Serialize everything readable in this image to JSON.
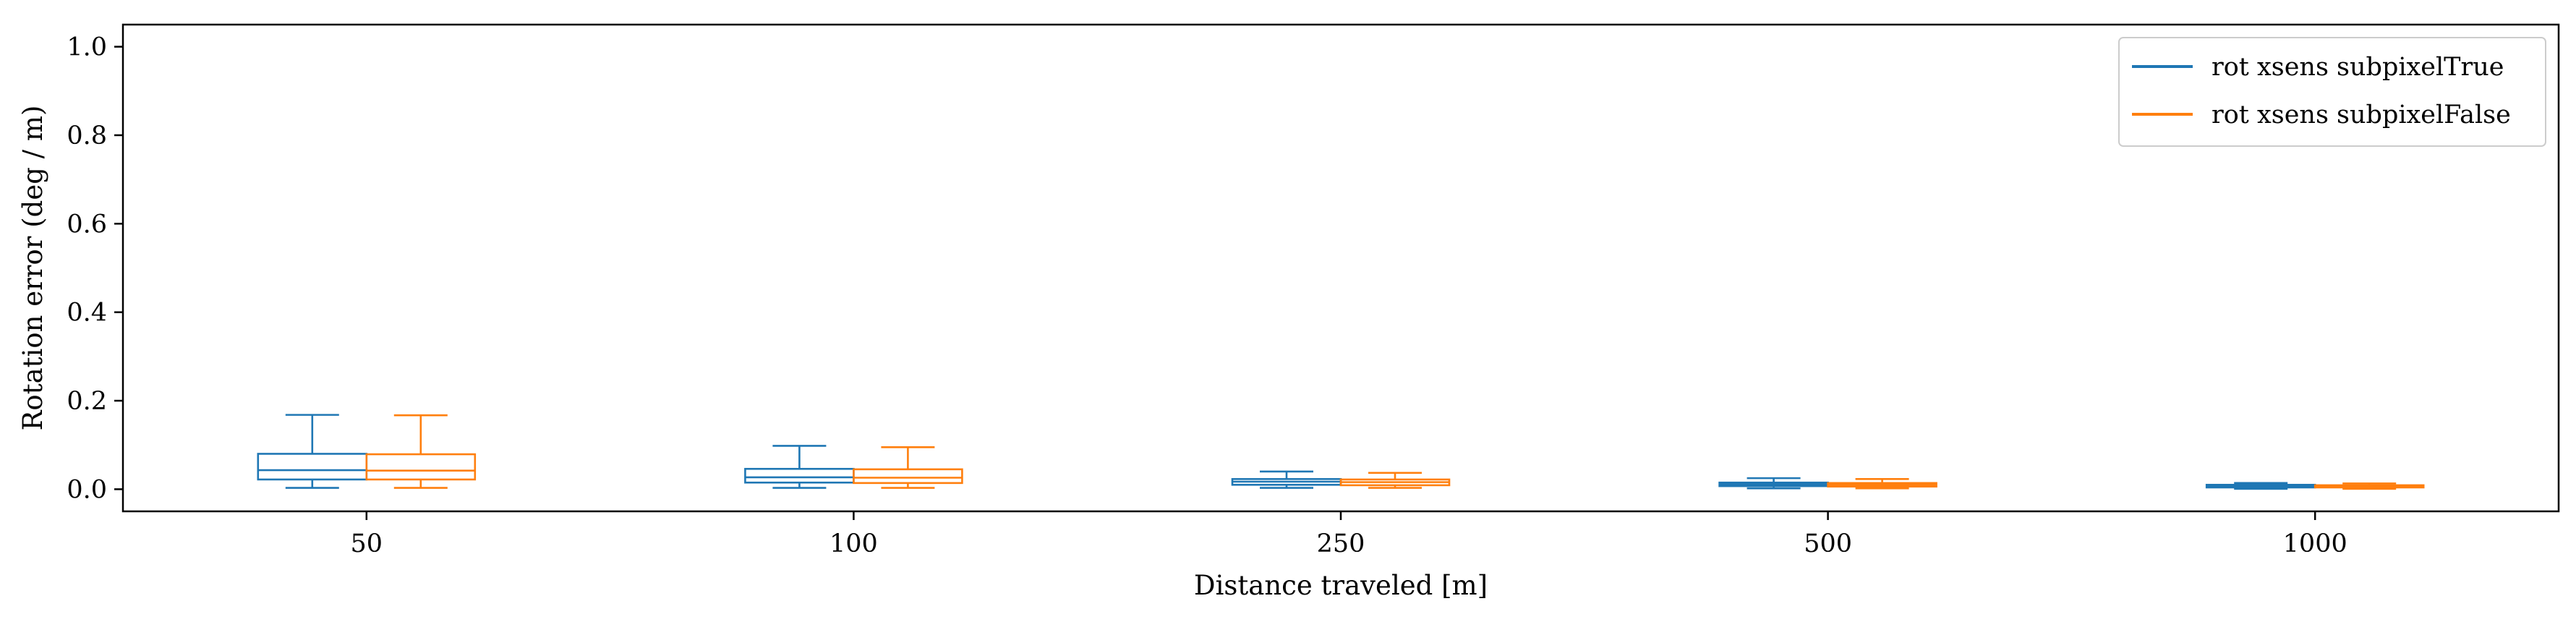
{
  "chart_data": {
    "type": "box",
    "title": "",
    "xlabel": "Distance traveled [m]",
    "ylabel": "Rotation error (deg / m)",
    "ylim": [
      -0.05,
      1.05
    ],
    "yticks": [
      0.0,
      0.2,
      0.4,
      0.6,
      0.8,
      1.0
    ],
    "ytick_labels": [
      "0.0",
      "0.2",
      "0.4",
      "0.6",
      "0.8",
      "1.0"
    ],
    "categories": [
      "50",
      "100",
      "250",
      "500",
      "1000"
    ],
    "grid": false,
    "legend_position": "top-right",
    "series": [
      {
        "name": "rot xsens subpixelTrue",
        "color": "#1f77b4",
        "boxes": [
          {
            "whislo": 0.003,
            "q1": 0.022,
            "med": 0.043,
            "q3": 0.08,
            "whishi": 0.168
          },
          {
            "whislo": 0.003,
            "q1": 0.015,
            "med": 0.027,
            "q3": 0.046,
            "whishi": 0.098
          },
          {
            "whislo": 0.003,
            "q1": 0.01,
            "med": 0.017,
            "q3": 0.023,
            "whishi": 0.04
          },
          {
            "whislo": 0.002,
            "q1": 0.007,
            "med": 0.011,
            "q3": 0.015,
            "whishi": 0.025
          },
          {
            "whislo": 0.001,
            "q1": 0.004,
            "med": 0.007,
            "q3": 0.01,
            "whishi": 0.014
          }
        ]
      },
      {
        "name": "rot xsens subpixelFalse",
        "color": "#ff7f0e",
        "boxes": [
          {
            "whislo": 0.003,
            "q1": 0.022,
            "med": 0.042,
            "q3": 0.079,
            "whishi": 0.167
          },
          {
            "whislo": 0.003,
            "q1": 0.014,
            "med": 0.026,
            "q3": 0.045,
            "whishi": 0.095
          },
          {
            "whislo": 0.003,
            "q1": 0.009,
            "med": 0.016,
            "q3": 0.022,
            "whishi": 0.037
          },
          {
            "whislo": 0.002,
            "q1": 0.006,
            "med": 0.01,
            "q3": 0.014,
            "whishi": 0.023
          },
          {
            "whislo": 0.001,
            "q1": 0.004,
            "med": 0.006,
            "q3": 0.009,
            "whishi": 0.013
          }
        ]
      }
    ]
  }
}
